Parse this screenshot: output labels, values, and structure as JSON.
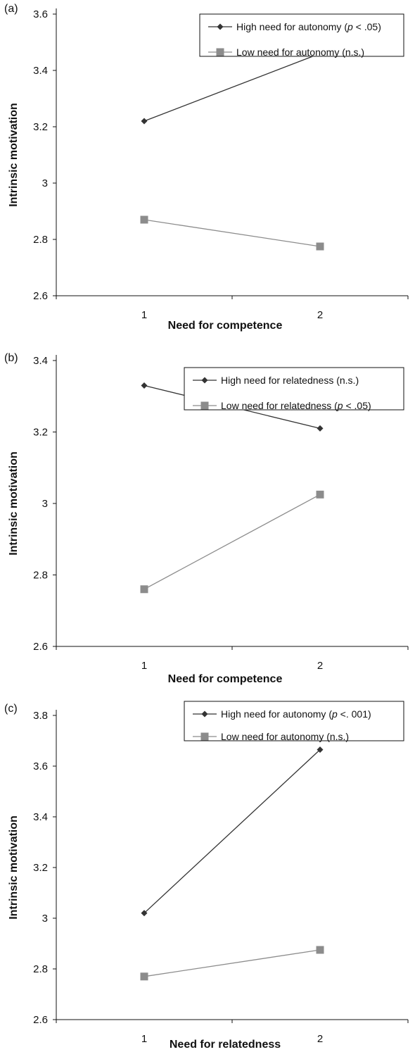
{
  "chart_data": [
    {
      "type": "line",
      "panel_label": "(a)",
      "xlabel": "Need for competence",
      "ylabel": "Intrinsic motivation",
      "categories": [
        "1",
        "2"
      ],
      "ylim": [
        2.6,
        3.6
      ],
      "yticks": [
        "2.6",
        "2.8",
        "3",
        "3.2",
        "3.4",
        "3.6"
      ],
      "legend_position": "top-right",
      "series": [
        {
          "name": "High need for autonomy (p < .05)",
          "name_parts": [
            "High need for autonomy (",
            "p",
            " < .05)"
          ],
          "values": [
            3.22,
            3.46
          ],
          "color": "#333333",
          "marker": "diamond"
        },
        {
          "name": "Low need for autonomy (n.s.)",
          "name_parts": [
            "Low need for autonomy (n.s.)",
            "",
            ""
          ],
          "values": [
            2.87,
            2.775
          ],
          "color": "#8c8c8c",
          "marker": "square"
        }
      ]
    },
    {
      "type": "line",
      "panel_label": "(b)",
      "xlabel": "Need for competence",
      "ylabel": "Intrinsic motivation",
      "categories": [
        "1",
        "2"
      ],
      "ylim": [
        2.6,
        3.4
      ],
      "yticks": [
        "2.6",
        "2.8",
        "3",
        "3.2",
        "3.4"
      ],
      "legend_position": "top-right",
      "series": [
        {
          "name": "High need for relatedness (n.s.)",
          "name_parts": [
            "High need for relatedness (n.s.)",
            "",
            ""
          ],
          "values": [
            3.33,
            3.21
          ],
          "color": "#333333",
          "marker": "diamond"
        },
        {
          "name": "Low need for relatedness (p < .05)",
          "name_parts": [
            "Low need for relatedness (",
            "p",
            " < .05)"
          ],
          "values": [
            2.76,
            3.025
          ],
          "color": "#8c8c8c",
          "marker": "square"
        }
      ]
    },
    {
      "type": "line",
      "panel_label": "(c)",
      "xlabel": "Need for relatedness",
      "ylabel": "Intrinsic motivation",
      "categories": [
        "1",
        "2"
      ],
      "ylim": [
        2.6,
        3.8
      ],
      "yticks": [
        "2.6",
        "2.8",
        "3",
        "3.2",
        "3.4",
        "3.6",
        "3.8"
      ],
      "legend_position": "top-right",
      "series": [
        {
          "name": "High need for autonomy (p <. 001)",
          "name_parts": [
            "High need for autonomy (",
            "p",
            " <. 001)"
          ],
          "values": [
            3.02,
            3.665
          ],
          "color": "#333333",
          "marker": "diamond"
        },
        {
          "name": "Low need for autonomy (n.s.)",
          "name_parts": [
            "Low need for autonomy (n.s.)",
            "",
            ""
          ],
          "values": [
            2.77,
            2.875
          ],
          "color": "#8c8c8c",
          "marker": "square"
        }
      ]
    }
  ]
}
